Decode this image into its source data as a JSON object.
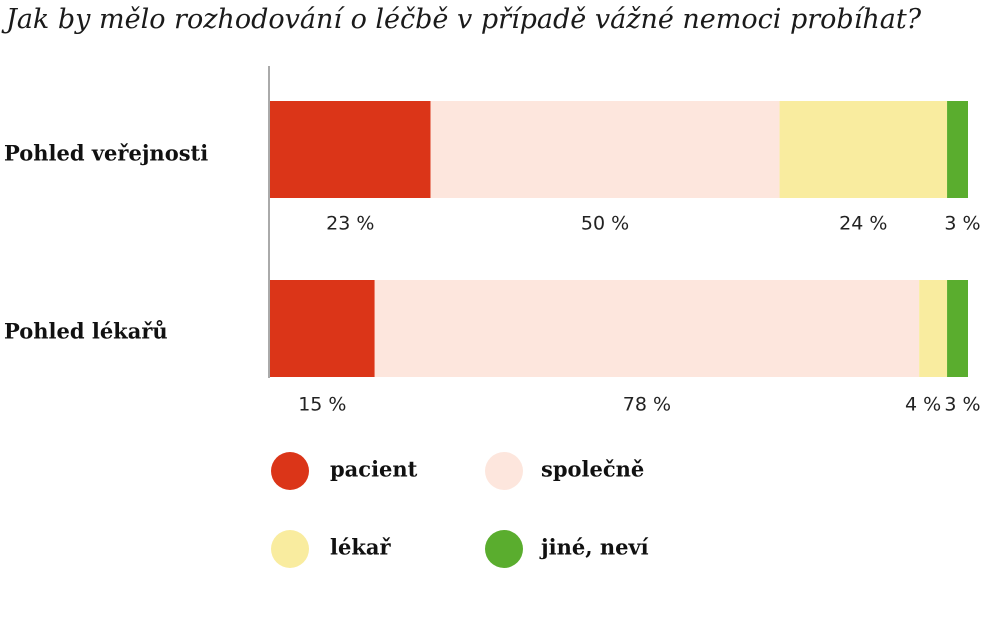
{
  "chart_data": {
    "type": "bar",
    "orientation": "horizontal",
    "stacked": true,
    "percent": true,
    "title": "Jak by mělo rozhodování o léčbě v případě vážné nemoci probíhat?",
    "categories": [
      "Pohled veřejnosti",
      "Pohled lékařů"
    ],
    "series": [
      {
        "name": "pacient",
        "values": [
          23,
          15
        ],
        "labels": [
          "23 %",
          "15 %"
        ],
        "color": "#db3518"
      },
      {
        "name": "společně",
        "values": [
          50,
          78
        ],
        "labels": [
          "50 %",
          "78 %"
        ],
        "color": "#fde6dd"
      },
      {
        "name": "lékař",
        "values": [
          24,
          4
        ],
        "labels": [
          "24 %",
          "4 %"
        ],
        "color": "#f9ec9f"
      },
      {
        "name": "jiné, neví",
        "values": [
          3,
          3
        ],
        "labels": [
          "3 %",
          "3 %"
        ],
        "color": "#5aad2e"
      }
    ],
    "xlim": [
      0,
      100
    ],
    "grid": false,
    "legend_position": "bottom"
  }
}
